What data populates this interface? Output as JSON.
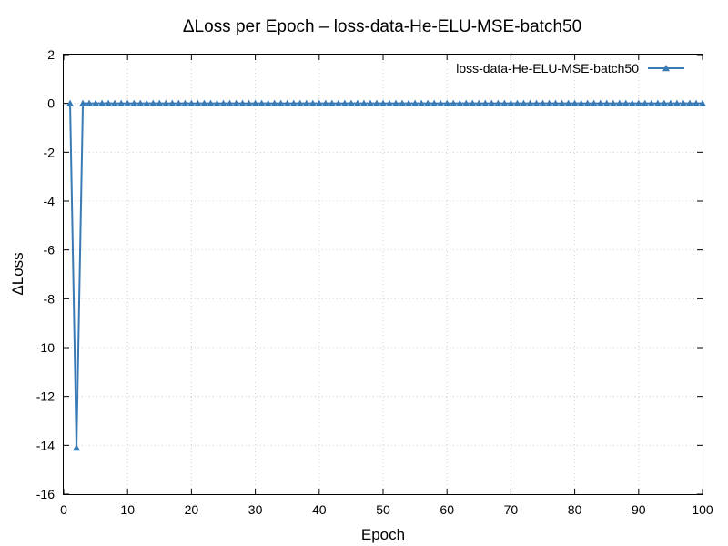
{
  "chart_data": {
    "type": "line",
    "title": "ΔLoss per Epoch – loss-data-He-ELU-MSE-batch50",
    "xlabel": "Epoch",
    "ylabel": "ΔLoss",
    "xlim": [
      0,
      100
    ],
    "ylim": [
      -16,
      2
    ],
    "xticks": [
      0,
      10,
      20,
      30,
      40,
      50,
      60,
      70,
      80,
      90,
      100
    ],
    "yticks": [
      2,
      0,
      -2,
      -4,
      -6,
      -8,
      -10,
      -12,
      -14,
      -16
    ],
    "grid": true,
    "legend_position": "top-right",
    "series": [
      {
        "name": "loss-data-He-ELU-MSE-batch50",
        "color": "#3a7ab5",
        "marker": "triangle",
        "x": [
          1,
          2,
          3,
          4,
          5,
          6,
          7,
          8,
          9,
          10,
          11,
          12,
          13,
          14,
          15,
          16,
          17,
          18,
          19,
          20,
          21,
          22,
          23,
          24,
          25,
          26,
          27,
          28,
          29,
          30,
          31,
          32,
          33,
          34,
          35,
          36,
          37,
          38,
          39,
          40,
          41,
          42,
          43,
          44,
          45,
          46,
          47,
          48,
          49,
          50,
          51,
          52,
          53,
          54,
          55,
          56,
          57,
          58,
          59,
          60,
          61,
          62,
          63,
          64,
          65,
          66,
          67,
          68,
          69,
          70,
          71,
          72,
          73,
          74,
          75,
          76,
          77,
          78,
          79,
          80,
          81,
          82,
          83,
          84,
          85,
          86,
          87,
          88,
          89,
          90,
          91,
          92,
          93,
          94,
          95,
          96,
          97,
          98,
          99,
          100
        ],
        "y": [
          0,
          -14.1,
          0,
          0,
          0,
          0,
          0,
          0,
          0,
          0,
          0,
          0,
          0,
          0,
          0,
          0,
          0,
          0,
          0,
          0,
          0,
          0,
          0,
          0,
          0,
          0,
          0,
          0,
          0,
          0,
          0,
          0,
          0,
          0,
          0,
          0,
          0,
          0,
          0,
          0,
          0,
          0,
          0,
          0,
          0,
          0,
          0,
          0,
          0,
          0,
          0,
          0,
          0,
          0,
          0,
          0,
          0,
          0,
          0,
          0,
          0,
          0,
          0,
          0,
          0,
          0,
          0,
          0,
          0,
          0,
          0,
          0,
          0,
          0,
          0,
          0,
          0,
          0,
          0,
          0,
          0,
          0,
          0,
          0,
          0,
          0,
          0,
          0,
          0,
          0,
          0,
          0,
          0,
          0,
          0,
          0,
          0,
          0,
          0,
          0
        ]
      }
    ]
  }
}
